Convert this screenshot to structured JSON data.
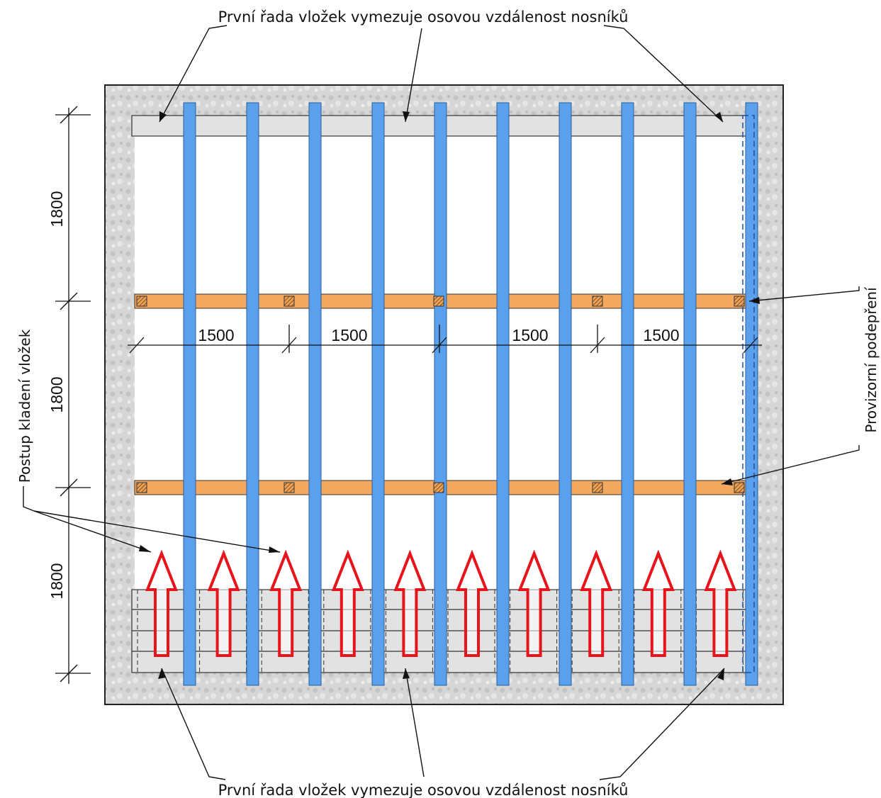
{
  "labels": {
    "top_note": "První řada vložek vymezuje osovou vzdálenost nosníků",
    "bottom_note": "První řada vložek vymezuje osovou vzdálenost nosníků",
    "left_note": "Postup kladení vložek",
    "right_note": "Provizorní podepření"
  },
  "dimensions": {
    "vertical": [
      "1800",
      "1800",
      "1800"
    ],
    "horizontal": [
      "1500",
      "1500",
      "1500",
      "1500"
    ]
  },
  "colors": {
    "concrete": "#d4d4d4",
    "beam": "#5aa0ec",
    "support": "#f4a860",
    "insert": "#e2e2e2",
    "arrow": "#e8141c",
    "line": "#111111"
  },
  "counts": {
    "beams": 10,
    "insert_columns": 10,
    "arrows": 10
  }
}
